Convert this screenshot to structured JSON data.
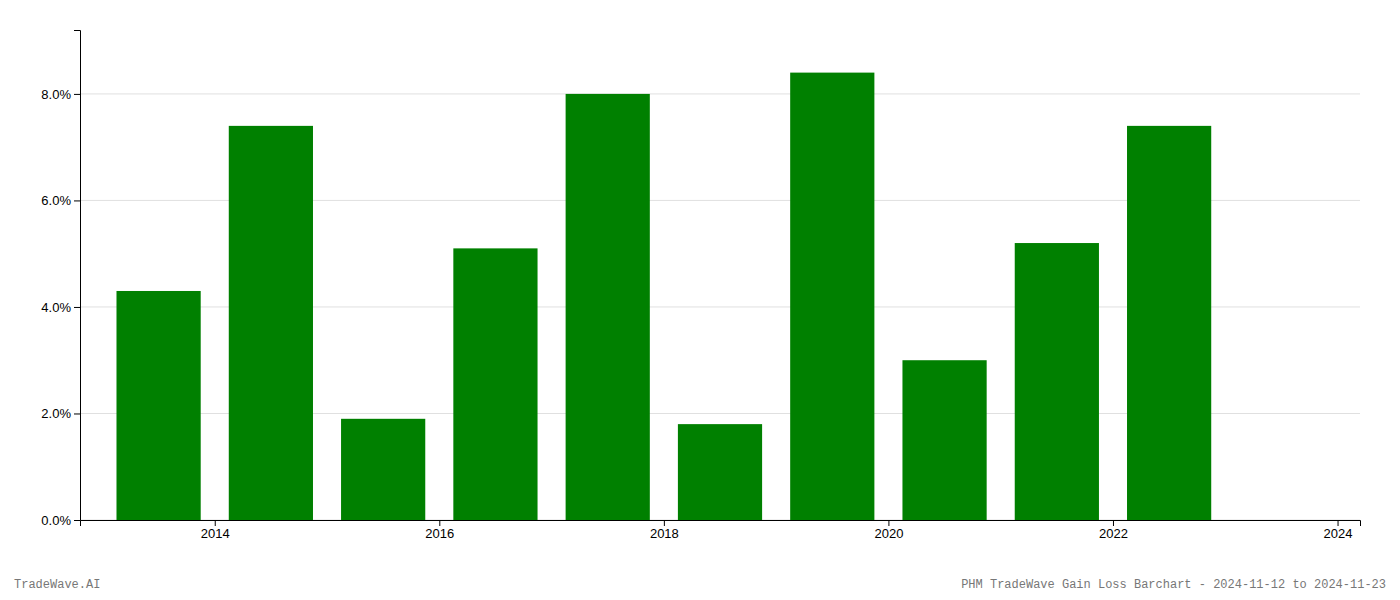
{
  "chart_data": {
    "type": "bar",
    "x": [
      2014,
      2015,
      2016,
      2017,
      2018,
      2019,
      2020,
      2021,
      2022,
      2023
    ],
    "values": [
      0.043,
      0.074,
      0.019,
      0.051,
      0.08,
      0.018,
      0.084,
      0.03,
      0.052,
      0.074
    ],
    "color": "#008000",
    "xlim": [
      2013.3,
      2024.7
    ],
    "xticks": [
      {
        "value": 2014.5,
        "label": "2014"
      },
      {
        "value": 2016.5,
        "label": "2016"
      },
      {
        "value": 2018.5,
        "label": "2018"
      },
      {
        "value": 2020.5,
        "label": "2020"
      },
      {
        "value": 2022.5,
        "label": "2022"
      },
      {
        "value": 2024.5,
        "label": "2024"
      }
    ],
    "ylim": [
      0.0,
      0.092
    ],
    "yticks": [
      {
        "value": 0.0,
        "label": "0.0%"
      },
      {
        "value": 0.02,
        "label": "2.0%"
      },
      {
        "value": 0.04,
        "label": "4.0%"
      },
      {
        "value": 0.06,
        "label": "6.0%"
      },
      {
        "value": 0.08,
        "label": "8.0%"
      }
    ],
    "grid": true,
    "annotations": [
      "TradeWave.AI",
      "PHM TradeWave Gain Loss Barchart - 2024-11-12 to 2024-11-23"
    ]
  }
}
